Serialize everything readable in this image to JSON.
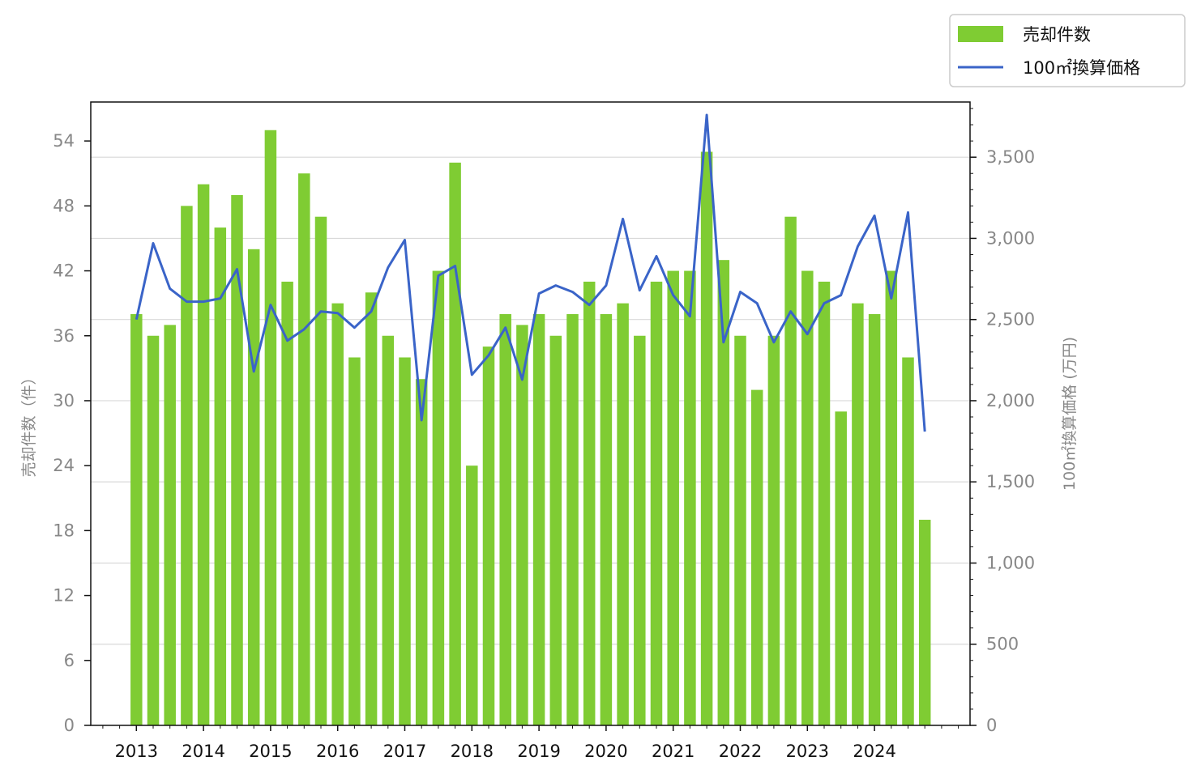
{
  "chart_data": {
    "type": "bar",
    "x_ticks": [
      "2013",
      "2014",
      "2015",
      "2016",
      "2017",
      "2018",
      "2019",
      "2020",
      "2021",
      "2022",
      "2023",
      "2024"
    ],
    "left_axis": {
      "label": "売却件数（件）",
      "ylim": [
        0,
        57.6
      ],
      "ticks": [
        "0",
        "6",
        "12",
        "18",
        "24",
        "30",
        "36",
        "42",
        "48",
        "54"
      ]
    },
    "right_axis": {
      "label": "100㎡換算価格 (万円)",
      "ylim": [
        0,
        3840
      ],
      "ticks": [
        "0",
        "500",
        "1,000",
        "1,500",
        "2,000",
        "2,500",
        "3,000",
        "3,500"
      ]
    },
    "legend": {
      "position": "top-right",
      "bar_label": "売却件数",
      "line_label": "100㎡換算価格"
    },
    "series": [
      {
        "name": "売却件数",
        "type": "bar",
        "axis": "left",
        "color": "#7fcc33",
        "values": [
          38,
          36,
          37,
          48,
          50,
          46,
          49,
          44,
          55,
          41,
          51,
          47,
          39,
          34,
          40,
          36,
          34,
          32,
          42,
          52,
          24,
          35,
          38,
          37,
          38,
          36,
          38,
          41,
          38,
          39,
          36,
          41,
          42,
          42,
          53,
          43,
          36,
          31,
          36,
          47,
          42,
          41,
          29,
          39,
          38,
          42,
          34,
          19
        ]
      },
      {
        "name": "100㎡換算価格",
        "type": "line",
        "axis": "right",
        "color": "#3a64c8",
        "values": [
          2500,
          2970,
          2690,
          2610,
          2610,
          2630,
          2810,
          2180,
          2590,
          2370,
          2440,
          2550,
          2540,
          2450,
          2550,
          2820,
          2990,
          1880,
          2770,
          2830,
          2160,
          2280,
          2450,
          2130,
          2660,
          2710,
          2670,
          2590,
          2710,
          3120,
          2680,
          2890,
          2650,
          2520,
          3760,
          2360,
          2670,
          2600,
          2360,
          2550,
          2410,
          2600,
          2650,
          2950,
          3140,
          2630,
          3160,
          1810
        ]
      }
    ]
  }
}
